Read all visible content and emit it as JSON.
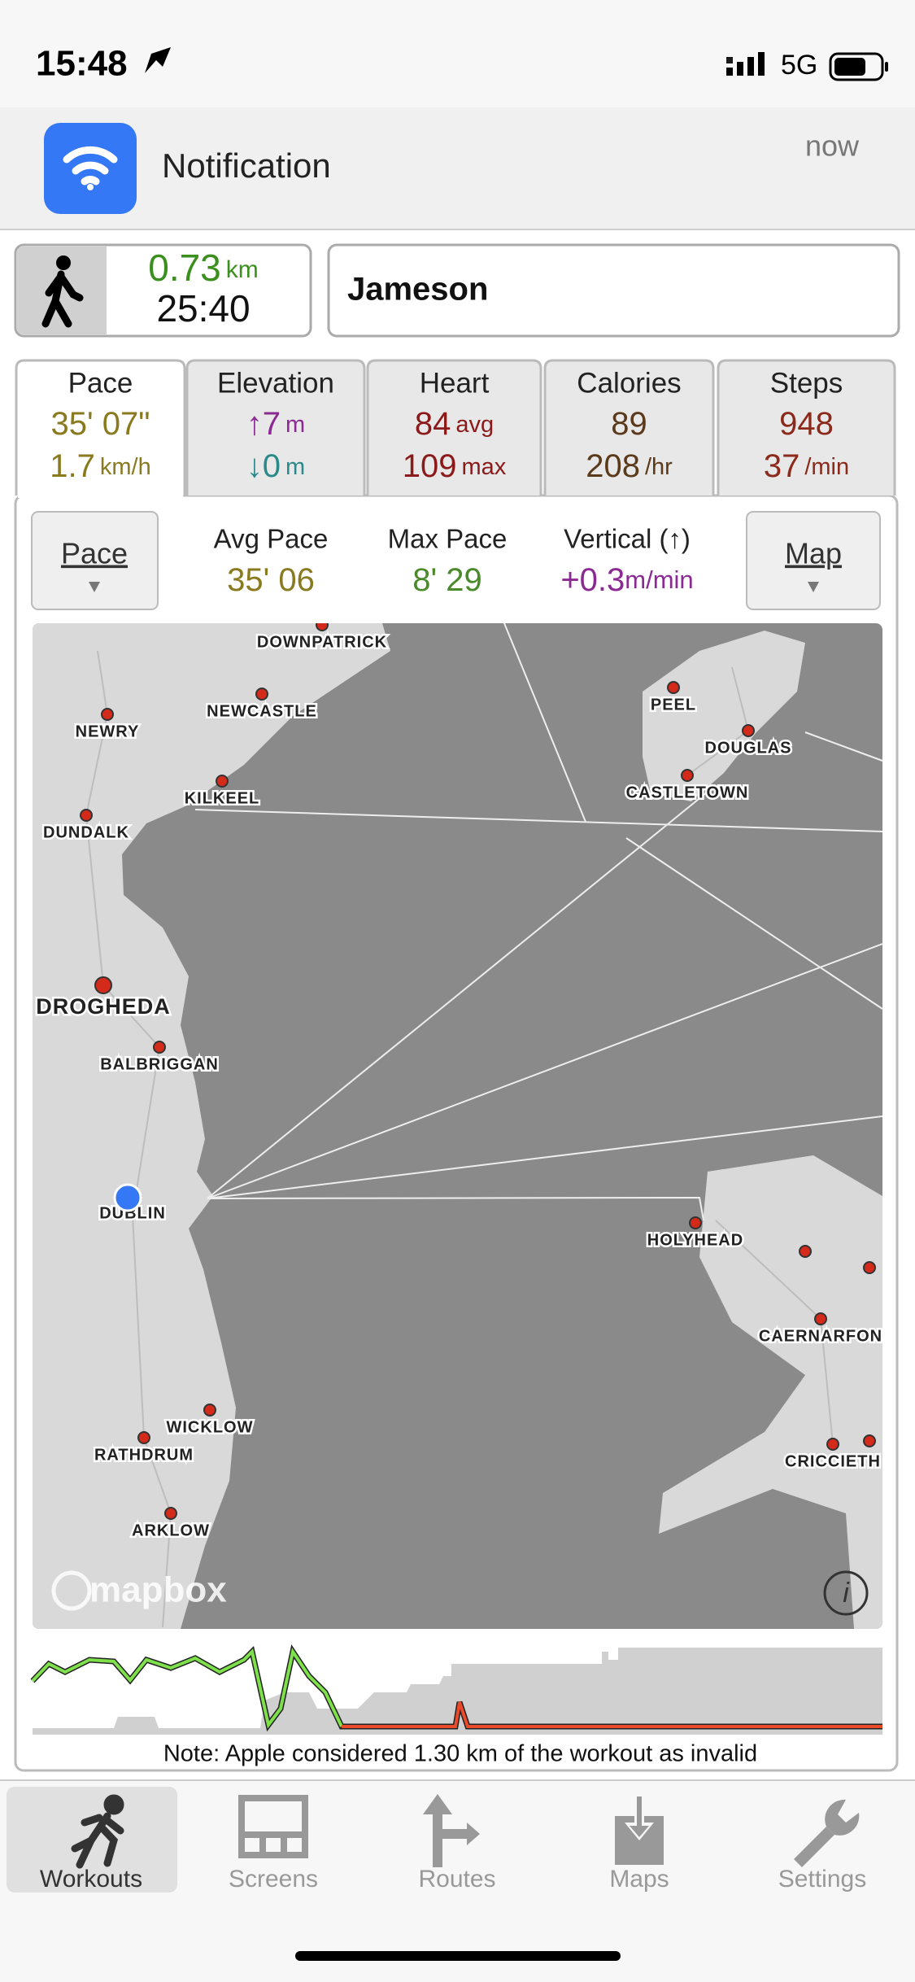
{
  "status_bar": {
    "time": "15:48",
    "network": "5G"
  },
  "notification": {
    "title": "Notification",
    "time": "now"
  },
  "workout": {
    "distance": "0.73",
    "distance_unit": "km",
    "duration": "25:40",
    "name": "Jameson"
  },
  "tabs": [
    {
      "label": "Pace",
      "lines": [
        {
          "value": "35' 07\""
        },
        {
          "value": "1.7",
          "unit": "km/h"
        }
      ]
    },
    {
      "label": "Elevation",
      "lines": [
        {
          "value": "↑7",
          "unit": "m"
        },
        {
          "value": "↓0",
          "unit": "m"
        }
      ]
    },
    {
      "label": "Heart",
      "lines": [
        {
          "value": "84",
          "unit": "avg"
        },
        {
          "value": "109",
          "unit": "max"
        }
      ]
    },
    {
      "label": "Calories",
      "lines": [
        {
          "value": "89"
        },
        {
          "value": "208",
          "unit": "/hr"
        }
      ]
    },
    {
      "label": "Steps",
      "lines": [
        {
          "value": "948"
        },
        {
          "value": "37",
          "unit": "/min"
        }
      ]
    }
  ],
  "controls": {
    "left_button": "Pace",
    "right_button": "Map"
  },
  "stats": [
    {
      "label": "Avg Pace",
      "value": "35' 06"
    },
    {
      "label": "Max Pace",
      "value": "8' 29"
    },
    {
      "label": "Vertical (↑)",
      "value": "+0.3",
      "unit": "m/min"
    }
  ],
  "map": {
    "places": [
      "DOWNPATRICK",
      "NEWCASTLE",
      "NEWRY",
      "KILKEEL",
      "DUNDALK",
      "DROGHEDA",
      "BALBRIGGAN",
      "DUBLIN",
      "WICKLOW",
      "RATHDRUM",
      "ARKLOW",
      "PEEL",
      "DOUGLAS",
      "CASTLETOWN",
      "HOLYHEAD",
      "CAERNARFON",
      "CRICCIETH"
    ],
    "attribution": "mapbox"
  },
  "note": "Note: Apple considered 1.30 km of the workout as invalid",
  "tab_bar": [
    "Workouts",
    "Screens",
    "Routes",
    "Maps",
    "Settings"
  ]
}
